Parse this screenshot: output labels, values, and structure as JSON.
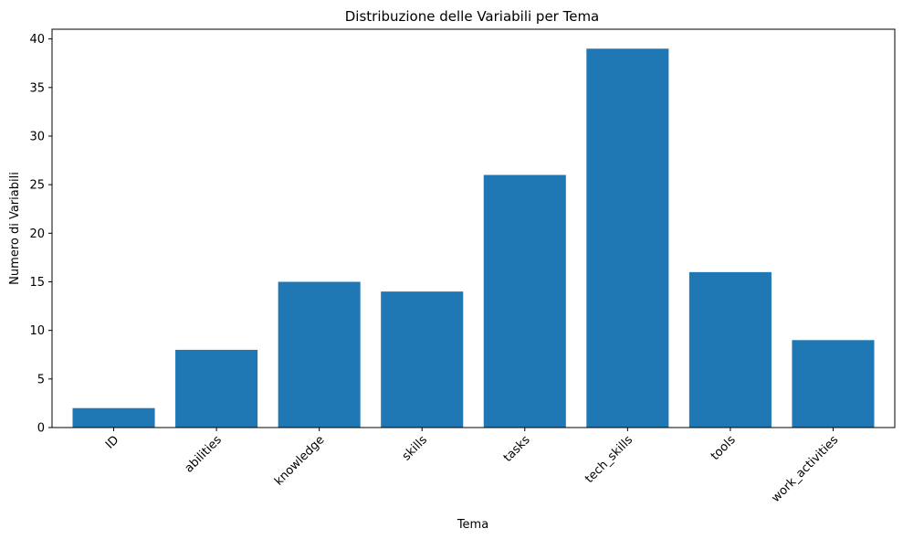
{
  "chart_data": {
    "type": "bar",
    "title": "Distribuzione delle Variabili per Tema",
    "xlabel": "Tema",
    "ylabel": "Numero di Variabili",
    "categories": [
      "ID",
      "abilities",
      "knowledge",
      "skills",
      "tasks",
      "tech_skills",
      "tools",
      "work_activities"
    ],
    "values": [
      2,
      8,
      15,
      14,
      26,
      39,
      16,
      9
    ],
    "ylim": [
      0,
      41
    ],
    "yticks": [
      0,
      5,
      10,
      15,
      20,
      25,
      30,
      35,
      40
    ],
    "grid": false,
    "bar_color": "#1f77b4"
  }
}
